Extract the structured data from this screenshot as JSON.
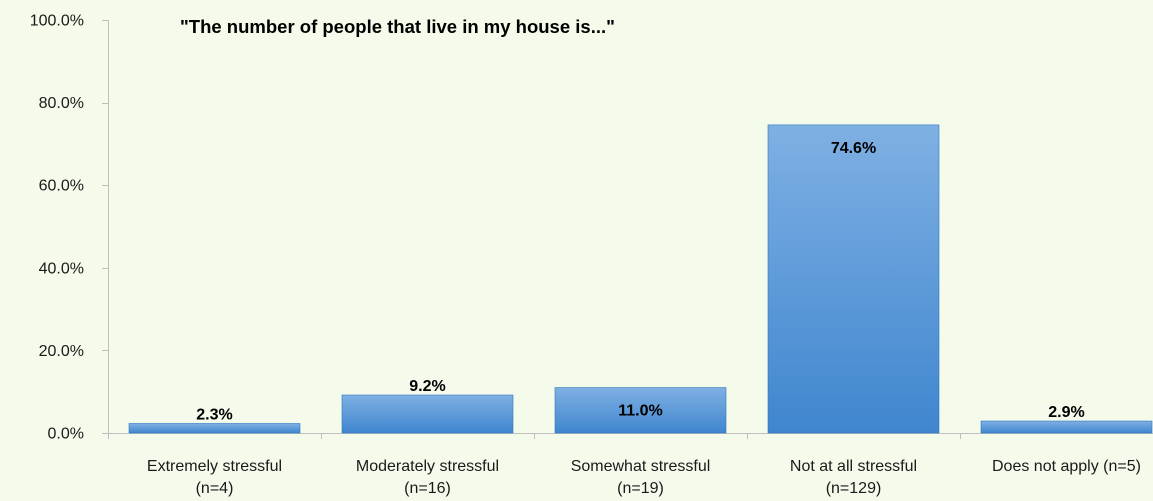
{
  "chart_data": {
    "type": "bar",
    "title": "\"The number of people that live in my house is...\"",
    "xlabel": "",
    "ylabel": "",
    "ylim": [
      0,
      100
    ],
    "y_ticks": [
      0,
      20,
      40,
      60,
      80,
      100
    ],
    "y_tick_labels": [
      "0.0%",
      "20.0%",
      "40.0%",
      "60.0%",
      "80.0%",
      "100.0%"
    ],
    "grid": false,
    "legend": "none",
    "categories": [
      [
        "Extremely stressful",
        "(n=4)"
      ],
      [
        "Moderately stressful",
        "(n=16)"
      ],
      [
        "Somewhat stressful",
        "(n=19)"
      ],
      [
        "Not at all stressful",
        "(n=129)"
      ],
      [
        "Does not apply (n=5)"
      ]
    ],
    "values": [
      2.3,
      9.2,
      11.0,
      74.6,
      2.9
    ],
    "data_labels": [
      "2.3%",
      "9.2%",
      "11.0%",
      "74.6%",
      "2.9%"
    ],
    "colors": {
      "background": "#f5fbeb",
      "bar_top": "#7fb0e3",
      "bar_bottom": "#3f86cf",
      "bar_edge": "#2f75c0",
      "axis": "#bfbfbf"
    }
  }
}
